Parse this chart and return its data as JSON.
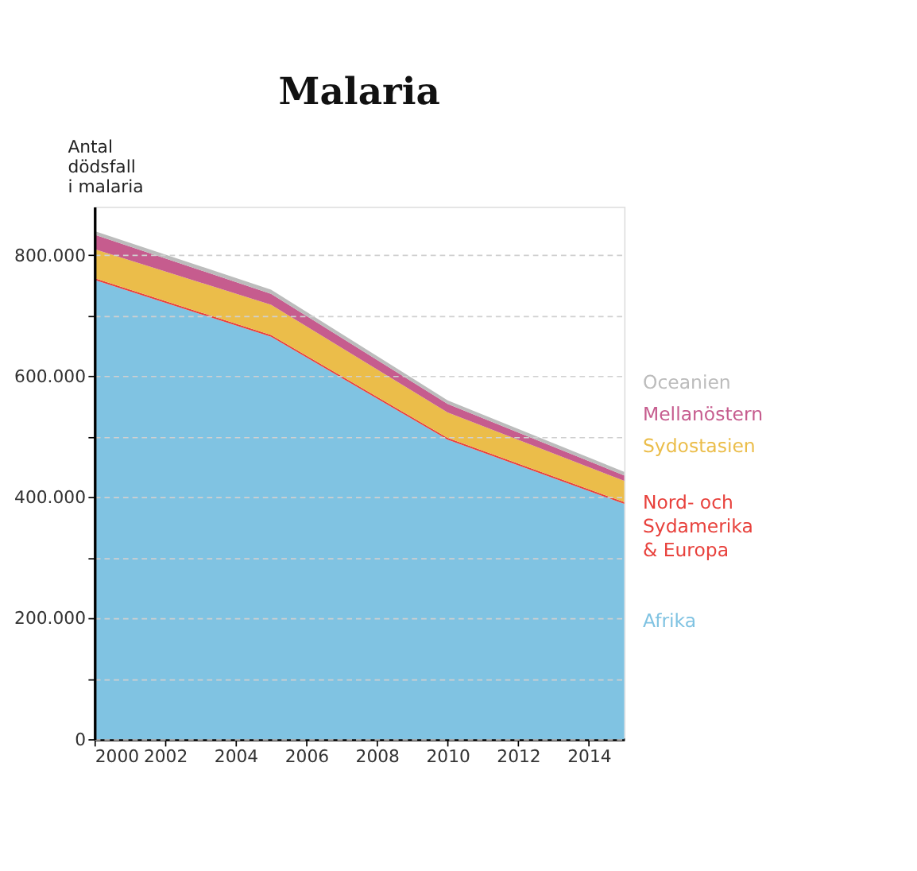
{
  "chart_data": {
    "type": "area",
    "title": "Malaria",
    "ylabel": "Antal dödsfall i malaria",
    "stacked": true,
    "x": [
      2000,
      2005,
      2010,
      2015
    ],
    "series": [
      {
        "name": "Afrika",
        "color": "#80c3e2",
        "values": [
          759000,
          665000,
          495000,
          389000
        ]
      },
      {
        "name": "Nord- och Sydamerika & Europa",
        "color": "#e8413c",
        "values": [
          3000,
          3000,
          3000,
          3000
        ]
      },
      {
        "name": "Sydostasien",
        "color": "#ebbd4a",
        "values": [
          48000,
          50000,
          42000,
          35000
        ]
      },
      {
        "name": "Mellanöstern",
        "color": "#c65c8e",
        "values": [
          24000,
          18000,
          14000,
          9000
        ]
      },
      {
        "name": "Oceanien",
        "color": "#bcbcbc",
        "values": [
          6000,
          7000,
          6000,
          6000
        ]
      }
    ],
    "xlim": [
      2000,
      2015
    ],
    "xticks": [
      2000,
      2002,
      2004,
      2006,
      2008,
      2010,
      2012,
      2014
    ],
    "ylim": [
      0,
      880000
    ],
    "yticks": [
      {
        "value": 0,
        "label": "0"
      },
      {
        "value": 100000,
        "label": null
      },
      {
        "value": 200000,
        "label": "200.000"
      },
      {
        "value": 300000,
        "label": null
      },
      {
        "value": 400000,
        "label": "400.000"
      },
      {
        "value": 500000,
        "label": null
      },
      {
        "value": 600000,
        "label": "600.000"
      },
      {
        "value": 700000,
        "label": null
      },
      {
        "value": 800000,
        "label": "800.000"
      }
    ],
    "grid": "y",
    "legend": "right"
  }
}
